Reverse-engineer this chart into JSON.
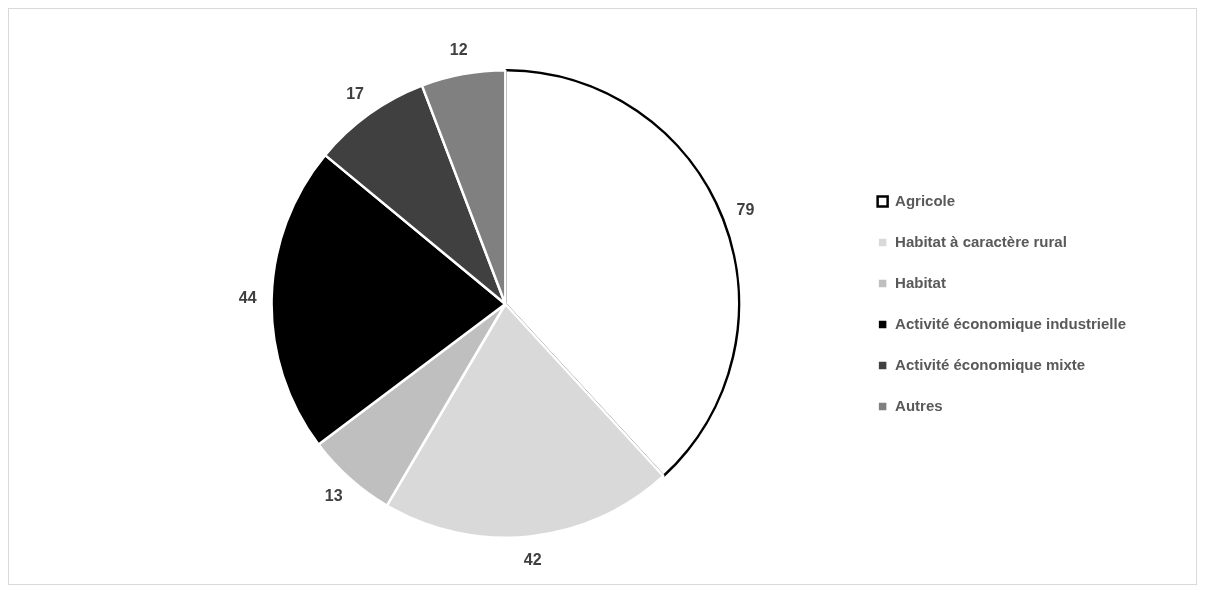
{
  "chart_data": {
    "type": "pie",
    "categories": [
      "Agricole",
      "Habitat à caractère rural",
      "Habitat",
      "Activité économique industrielle",
      "Activité économique mixte",
      "Autres"
    ],
    "values": [
      79,
      42,
      13,
      44,
      17,
      12
    ],
    "colors": [
      "#ffffff",
      "#d9d9d9",
      "#bfbfbf",
      "#000000",
      "#404040",
      "#808080"
    ],
    "data_labels": true,
    "legend": "right"
  }
}
